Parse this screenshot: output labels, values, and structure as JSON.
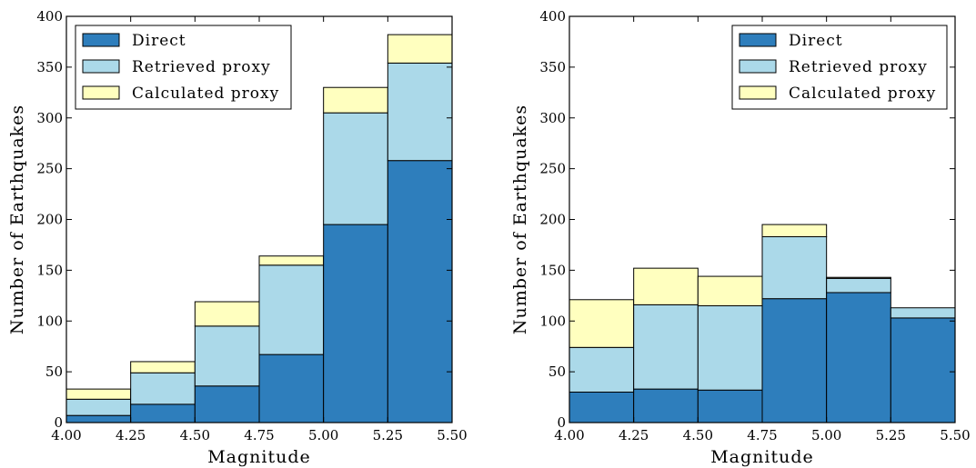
{
  "colors": {
    "direct": "#2e7ebc",
    "retrieved": "#abd9e9",
    "calculated": "#ffffbf",
    "edge": "#000000"
  },
  "chart_data": [
    {
      "type": "bar",
      "stacked": true,
      "histogram": true,
      "bin_edges": [
        4.0,
        4.25,
        4.5,
        4.75,
        5.0,
        5.25,
        5.5
      ],
      "x_ticks": [
        "4.00",
        "4.25",
        "4.50",
        "4.75",
        "5.00",
        "5.25",
        "5.50"
      ],
      "y_ticks": [
        "0",
        "50",
        "100",
        "150",
        "200",
        "250",
        "300",
        "350",
        "400"
      ],
      "xlim": [
        4.0,
        5.5
      ],
      "ylim": [
        0,
        400
      ],
      "xlabel": "Magnitude",
      "ylabel": "Number of Earthquakes",
      "grid": false,
      "legend_position": "top-left",
      "series": [
        {
          "name": "Direct",
          "color_key": "direct",
          "values": [
            7,
            18,
            36,
            67,
            195,
            258
          ]
        },
        {
          "name": "Retrieved proxy",
          "color_key": "retrieved",
          "values": [
            16,
            31,
            59,
            88,
            110,
            96
          ]
        },
        {
          "name": "Calculated proxy",
          "color_key": "calculated",
          "values": [
            10,
            11,
            24,
            9,
            25,
            28
          ]
        }
      ]
    },
    {
      "type": "bar",
      "stacked": true,
      "histogram": true,
      "bin_edges": [
        4.0,
        4.25,
        4.5,
        4.75,
        5.0,
        5.25,
        5.5
      ],
      "x_ticks": [
        "4.00",
        "4.25",
        "4.50",
        "4.75",
        "5.00",
        "5.25",
        "5.50"
      ],
      "y_ticks": [
        "0",
        "50",
        "100",
        "150",
        "200",
        "250",
        "300",
        "350",
        "400"
      ],
      "xlim": [
        4.0,
        5.5
      ],
      "ylim": [
        0,
        400
      ],
      "xlabel": "Magnitude",
      "ylabel": "Number of Earthquakes",
      "grid": false,
      "legend_position": "top-right",
      "series": [
        {
          "name": "Direct",
          "color_key": "direct",
          "values": [
            30,
            33,
            32,
            122,
            128,
            103
          ]
        },
        {
          "name": "Retrieved proxy",
          "color_key": "retrieved",
          "values": [
            44,
            83,
            83,
            61,
            14,
            10
          ]
        },
        {
          "name": "Calculated proxy",
          "color_key": "calculated",
          "values": [
            47,
            36,
            29,
            12,
            1,
            0
          ]
        }
      ]
    }
  ]
}
